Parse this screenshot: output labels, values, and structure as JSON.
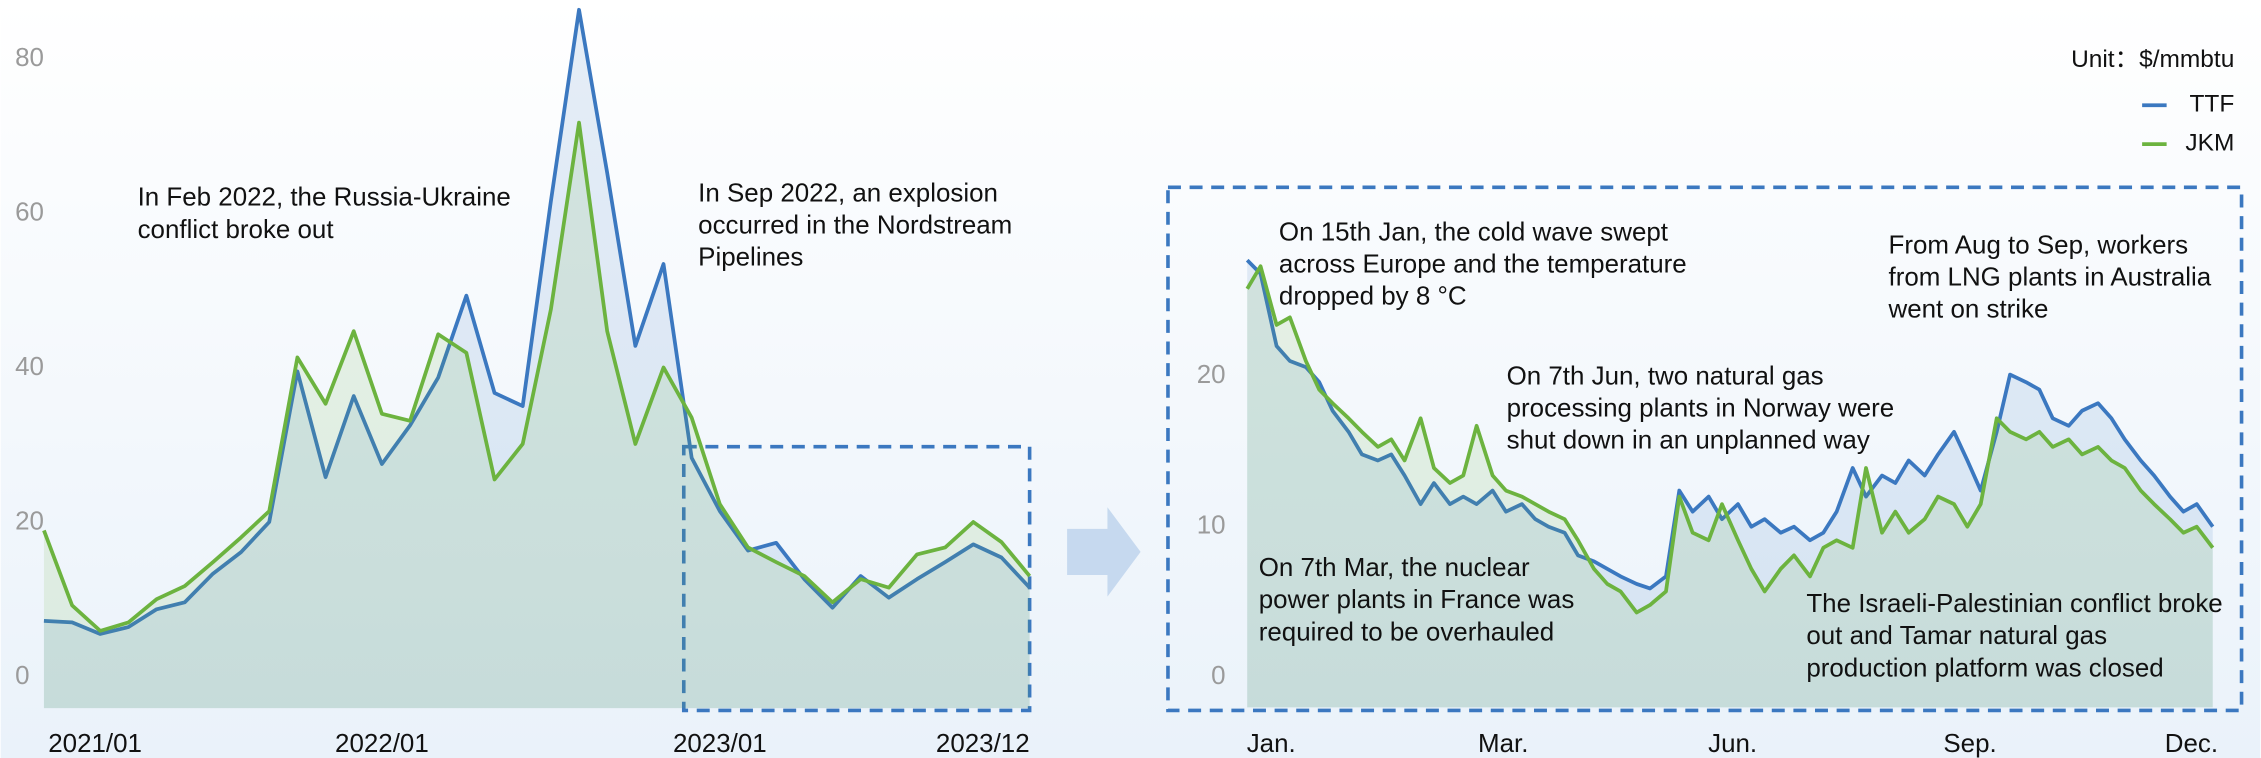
{
  "chart_data": [
    {
      "type": "line",
      "categories": [
        "2021/01",
        null,
        null,
        null,
        null,
        null,
        null,
        null,
        null,
        null,
        null,
        null,
        "2022/01",
        null,
        null,
        null,
        null,
        null,
        null,
        null,
        null,
        null,
        null,
        null,
        "2023/01",
        null,
        null,
        null,
        null,
        null,
        null,
        null,
        null,
        null,
        null,
        "2023/12"
      ],
      "series": [
        {
          "color": "#3b78c0",
          "values": [
            7.3,
            7.1,
            5.6,
            6.5,
            8.8,
            9.7,
            13.4,
            16.2,
            20.1,
            39.6,
            25.9,
            36.4,
            27.6,
            32.6,
            38.8,
            49.4,
            36.8,
            35.1,
            61.6,
            86.4,
            65.3,
            42.9,
            53.5,
            28.4,
            21.5,
            16.4,
            17.4,
            12.7,
            9.0,
            13.1,
            10.3,
            12.7,
            14.9,
            17.2,
            15.5,
            11.6
          ]
        },
        {
          "color": "#6cb33f",
          "values": [
            19.0,
            9.3,
            6.0,
            7.1,
            10.1,
            11.8,
            14.9,
            18.1,
            21.5,
            41.4,
            35.4,
            44.8,
            34.1,
            33.2,
            44.4,
            42.0,
            25.6,
            30.2,
            47.6,
            71.8,
            44.8,
            30.2,
            40.1,
            33.6,
            22.4,
            16.8,
            14.9,
            13.1,
            9.7,
            12.7,
            11.6,
            15.9,
            16.8,
            20.1,
            17.5,
            13.1
          ]
        }
      ],
      "ylim": [
        -4,
        87
      ],
      "yticks": [
        0,
        20,
        40,
        60,
        80
      ],
      "annotations": [
        {
          "lines": [
            "In Feb 2022, the Russia-Ukraine",
            "conflict broke out"
          ]
        },
        {
          "lines": [
            "In Sep 2022, an explosion",
            "occurred in the Nordstream",
            "Pipelines"
          ]
        }
      ]
    },
    {
      "type": "line",
      "unit": "Unit：$/mmbtu",
      "legend": "top-right",
      "x": [
        1,
        6,
        12,
        17,
        23,
        28,
        33,
        39,
        44,
        50,
        55,
        60,
        66,
        71,
        77,
        82,
        87,
        93,
        98,
        104,
        109,
        114,
        120,
        125,
        131,
        136,
        141,
        147,
        152,
        158,
        163,
        168,
        174,
        179,
        185,
        190,
        195,
        201,
        206,
        212,
        217,
        222,
        228,
        233,
        239,
        244,
        249,
        255,
        260,
        266,
        271,
        276,
        282,
        287,
        293,
        298,
        303,
        309,
        314,
        320,
        325,
        330,
        336,
        341,
        347,
        352,
        357,
        363
      ],
      "series": [
        {
          "name": "TTF",
          "color": "#3b78c0",
          "values": [
            27.7,
            26.8,
            22,
            21,
            20.6,
            19.6,
            17.7,
            16.3,
            14.8,
            14.4,
            14.8,
            13.4,
            11.5,
            12.9,
            11.5,
            12,
            11.5,
            12.4,
            11,
            11.5,
            10.5,
            10,
            9.6,
            8.1,
            7.7,
            7.2,
            6.7,
            6.2,
            5.9,
            6.7,
            12.4,
            11,
            12,
            10.5,
            11.5,
            10,
            10.5,
            9.6,
            10,
            9.1,
            9.6,
            11,
            13.9,
            12,
            13.4,
            12.9,
            14.4,
            13.4,
            14.8,
            16.3,
            14.4,
            12.4,
            16.3,
            20.1,
            19.6,
            19.1,
            17.2,
            16.7,
            17.7,
            18.2,
            17.2,
            15.8,
            14.4,
            13.4,
            12,
            11,
            11.5,
            10
          ]
        },
        {
          "name": "JKM",
          "color": "#6cb33f",
          "values": [
            25.8,
            27.3,
            23.4,
            23.9,
            21,
            19.1,
            18.2,
            17.2,
            16.3,
            15.3,
            15.8,
            14.4,
            17.2,
            13.9,
            12.9,
            13.4,
            16.7,
            13.4,
            12.4,
            12,
            11.5,
            11,
            10.5,
            9.1,
            7.2,
            6.2,
            5.7,
            4.3,
            4.8,
            5.7,
            12,
            9.6,
            9.1,
            11.5,
            9.1,
            7.2,
            5.7,
            7.2,
            8.1,
            6.7,
            8.6,
            9.1,
            8.6,
            13.9,
            9.6,
            11,
            9.6,
            10.5,
            12,
            11.5,
            10,
            11.5,
            17.2,
            16.3,
            15.8,
            16.3,
            15.3,
            15.8,
            14.8,
            15.3,
            14.4,
            13.9,
            12.4,
            11.5,
            10.5,
            9.6,
            10,
            8.6
          ]
        }
      ],
      "xlim": [
        1,
        363
      ],
      "xticks": [
        {
          "value": 10,
          "label": "Jan."
        },
        {
          "value": 97,
          "label": "Mar."
        },
        {
          "value": 183,
          "label": "Jun."
        },
        {
          "value": 272,
          "label": "Sep."
        },
        {
          "value": 355,
          "label": "Dec."
        }
      ],
      "ylim": [
        -2,
        32
      ],
      "yticks": [
        0,
        10,
        20
      ],
      "annotations": [
        {
          "lines": [
            "On 15th Jan, the cold wave swept",
            "across Europe and the temperature",
            "dropped by 8 °C"
          ]
        },
        {
          "lines": [
            "On 7th Jun, two natural gas",
            "processing plants in Norway were",
            "shut down in an unplanned way"
          ]
        },
        {
          "lines": [
            "From Aug to Sep, workers",
            "from LNG plants in Australia",
            "went on strike"
          ]
        },
        {
          "lines": [
            "On 7th Mar, the nuclear",
            "power plants in France was",
            "required to be overhauled"
          ]
        },
        {
          "lines": [
            "The Israeli-Palestinian conflict broke",
            "out and Tamar natural gas",
            "production platform was closed"
          ]
        }
      ]
    }
  ]
}
